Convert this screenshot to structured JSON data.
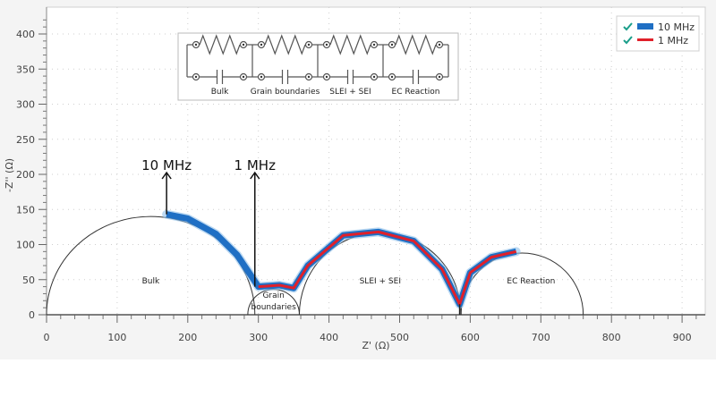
{
  "chart_data": {
    "type": "line",
    "title": "",
    "xlabel": "Z' (Ω)",
    "ylabel": "-Z'' (Ω)",
    "xlim": [
      0,
      930
    ],
    "ylim": [
      0,
      430
    ],
    "x_ticks": [
      0,
      100,
      200,
      300,
      400,
      500,
      600,
      700,
      800,
      900
    ],
    "y_ticks": [
      0,
      50,
      100,
      150,
      200,
      250,
      300,
      350,
      400
    ],
    "grid": true,
    "legend_position": "top-right",
    "legend": [
      {
        "label": "10 MHz",
        "color": "#1f6fc4",
        "checked": true
      },
      {
        "label": "1 MHz",
        "color": "#e0202a",
        "checked": true
      }
    ],
    "series": [
      {
        "name": "10 MHz",
        "color": "#1f6fc4",
        "x": [
          170,
          200,
          240,
          270,
          290,
          300,
          330,
          350,
          370,
          420,
          470,
          520,
          560,
          585,
          600,
          630,
          665
        ],
        "y": [
          143,
          137,
          115,
          85,
          55,
          40,
          42,
          38,
          70,
          113,
          118,
          105,
          65,
          15,
          60,
          82,
          90
        ]
      },
      {
        "name": "1 MHz",
        "color": "#e0202a",
        "x": [
          300,
          330,
          350,
          370,
          420,
          470,
          520,
          560,
          585,
          600,
          630,
          665
        ],
        "y": [
          40,
          42,
          38,
          70,
          113,
          118,
          105,
          65,
          15,
          60,
          82,
          90
        ]
      }
    ],
    "semicircles": [
      {
        "label": "Bulk",
        "x_start": 0,
        "x_end": 295,
        "peak": 140
      },
      {
        "label": "Grain boundaries",
        "x_start": 285,
        "x_end": 358,
        "peak": 36
      },
      {
        "label": "SLEI + SEI",
        "x_start": 358,
        "x_end": 587,
        "peak": 117
      },
      {
        "label": "EC Reaction",
        "x_start": 587,
        "x_end": 760,
        "peak": 88
      }
    ],
    "annotations": [
      {
        "text": "10 MHz",
        "x": 170,
        "arrow_from_y": 143,
        "arrow_to_y": 205
      },
      {
        "text": "1 MHz",
        "x": 295,
        "arrow_from_y": 40,
        "arrow_to_y": 205
      }
    ],
    "inset": {
      "type": "circuit",
      "description": "Four parallel RC elements in series",
      "labels": [
        "Bulk",
        "Grain boundaries",
        "SLEI + SEI",
        "EC Reaction"
      ]
    }
  }
}
